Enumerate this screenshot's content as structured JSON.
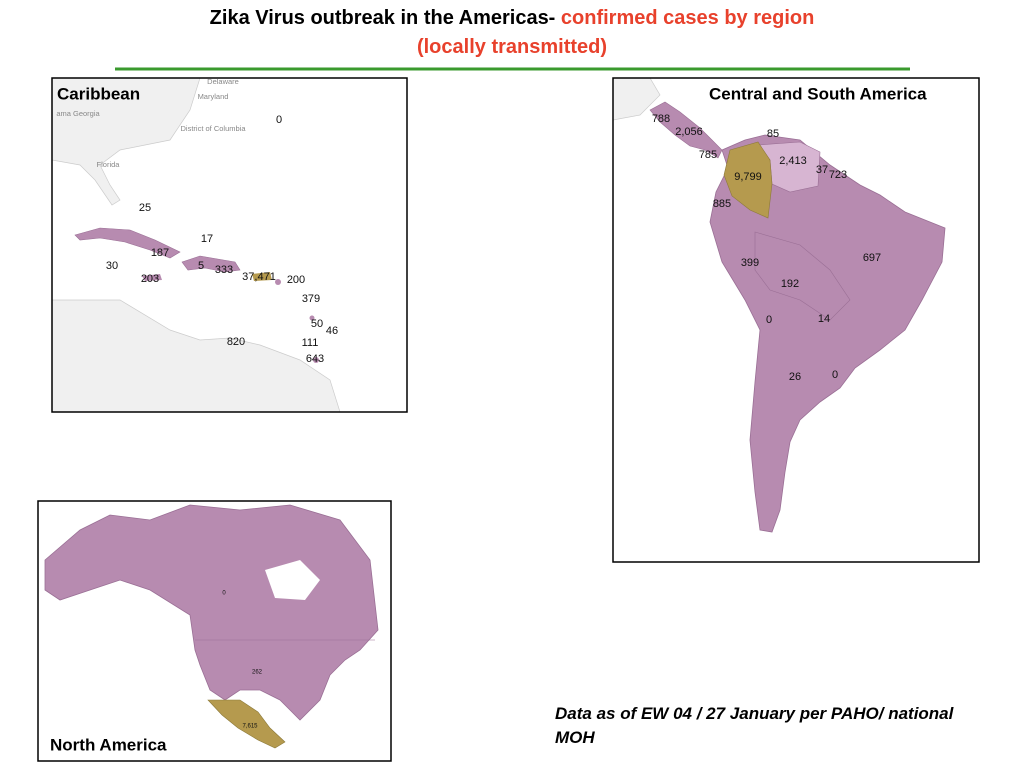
{
  "title": {
    "black": "Zika Virus outbreak in the Americas- ",
    "red": "confirmed cases by region (locally transmitted)"
  },
  "panels": {
    "caribbean": {
      "title": "Caribbean",
      "places": [
        "Delaware",
        "Maryland",
        "ama Georgia",
        "District of Columbia",
        "Florida"
      ],
      "labels": [
        "0",
        "25",
        "17",
        "187",
        "30",
        "5",
        "333",
        "37,471",
        "200",
        "203",
        "379",
        "50",
        "46",
        "820",
        "111",
        "643"
      ]
    },
    "central_south": {
      "title": "Central and South America",
      "labels": [
        "788",
        "2,056",
        "785",
        "85",
        "2,413",
        "9,799",
        "37",
        "723",
        "885",
        "697",
        "399",
        "192",
        "0",
        "14",
        "26",
        "0"
      ]
    },
    "north": {
      "title": "North America",
      "labels": [
        "0",
        "262",
        "7,615"
      ]
    }
  },
  "note": "Data as of EW 04 / 27 January per PAHO/ national MOH"
}
